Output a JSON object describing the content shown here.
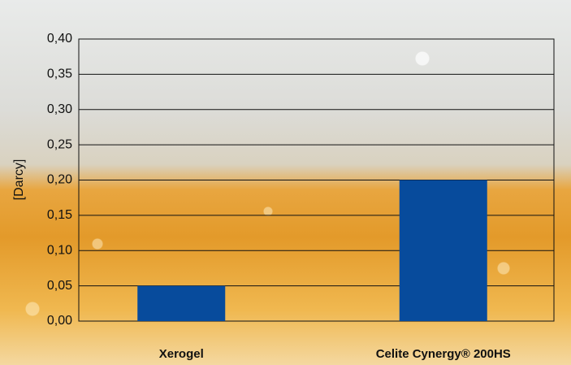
{
  "chart_data": {
    "type": "bar",
    "y_label": "[Darcy]",
    "categories": [
      "Xerogel",
      "Celite Cynergy® 200HS"
    ],
    "values": [
      0.05,
      0.2
    ],
    "color": "#074b9c",
    "ylim": [
      0,
      0.4
    ],
    "yticks": [
      {
        "value": 0,
        "label": "0,00"
      },
      {
        "value": 0.05,
        "label": "0,05"
      },
      {
        "value": 0.1,
        "label": "0,10"
      },
      {
        "value": 0.15,
        "label": "0,15"
      },
      {
        "value": 0.2,
        "label": "0,20"
      },
      {
        "value": 0.25,
        "label": "0,25"
      },
      {
        "value": 0.3,
        "label": "0,30"
      },
      {
        "value": 0.35,
        "label": "0,35"
      },
      {
        "value": 0.4,
        "label": "0,40"
      }
    ],
    "grid": true
  }
}
